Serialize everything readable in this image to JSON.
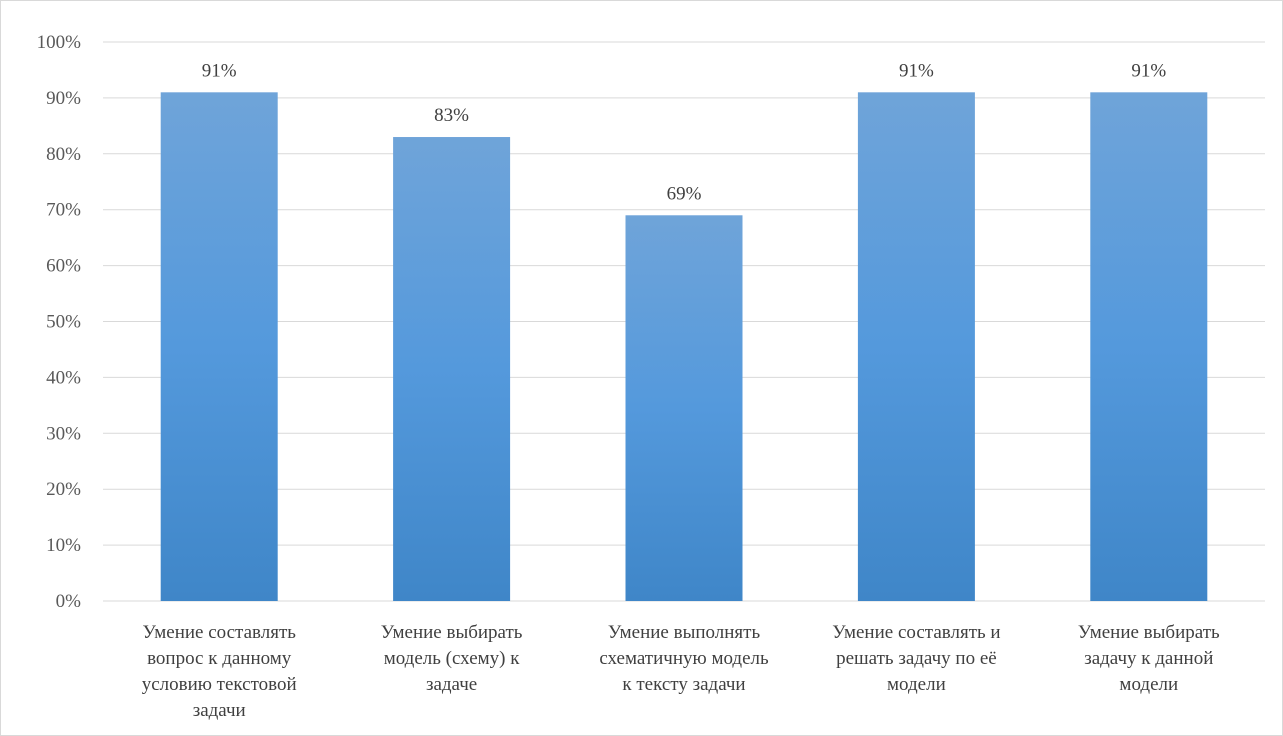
{
  "chart_data": {
    "type": "bar",
    "title": "",
    "xlabel": "",
    "ylabel": "",
    "categories": [
      [
        "Умение составлять",
        "вопрос к данному",
        "условию текстовой",
        "задачи"
      ],
      [
        "Умение выбирать",
        "модель (схему) к",
        "задаче"
      ],
      [
        "Умение выполнять",
        "схематичную модель",
        "к тексту задачи"
      ],
      [
        "Умение составлять и",
        "решать задачу по её",
        "модели"
      ],
      [
        "Умение выбирать",
        "задачу к данной",
        "модели"
      ]
    ],
    "values": [
      91,
      83,
      69,
      91,
      91
    ],
    "data_labels": [
      "91%",
      "83%",
      "69%",
      "91%",
      "91%"
    ],
    "ylim": [
      0,
      100
    ],
    "y_ticks": [
      {
        "value": 0,
        "label": "0%"
      },
      {
        "value": 10,
        "label": "10%"
      },
      {
        "value": 20,
        "label": "20%"
      },
      {
        "value": 30,
        "label": "30%"
      },
      {
        "value": 40,
        "label": "40%"
      },
      {
        "value": 50,
        "label": "50%"
      },
      {
        "value": 60,
        "label": "60%"
      },
      {
        "value": 70,
        "label": "70%"
      },
      {
        "value": 80,
        "label": "80%"
      },
      {
        "value": 90,
        "label": "90%"
      },
      {
        "value": 100,
        "label": "100%"
      }
    ],
    "grid": true,
    "legend": "none",
    "colors": {
      "bar_top": "#6fa4d9",
      "bar_bottom": "#3f86c8",
      "grid": "#d9d9d9"
    }
  }
}
